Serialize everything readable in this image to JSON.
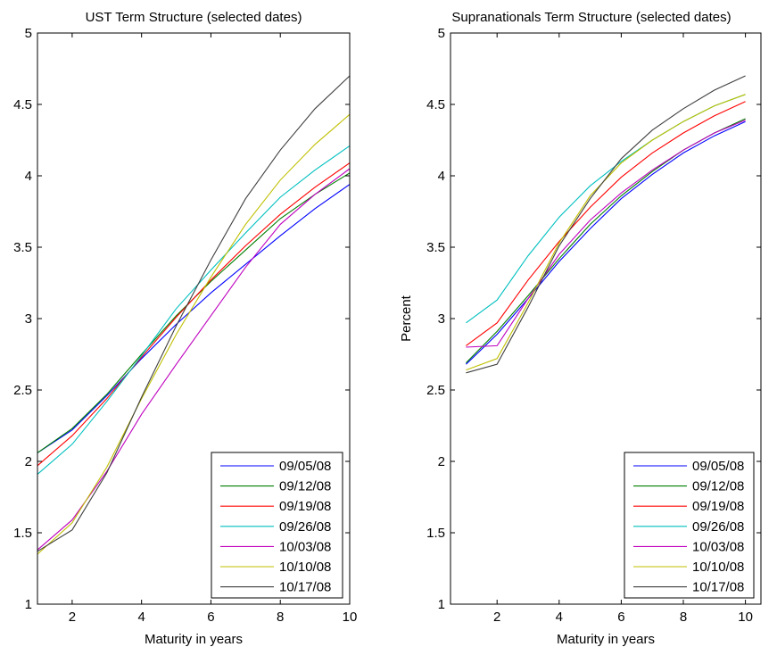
{
  "colors": {
    "09/05/08": "#0000ff",
    "09/12/08": "#007f00",
    "09/19/08": "#ff0000",
    "09/26/08": "#00bfbf",
    "10/03/08": "#bf00bf",
    "10/10/08": "#bfbf00",
    "10/17/08": "#3f3f3f"
  },
  "chart_data": [
    {
      "type": "line",
      "title": "UST Term Structure (selected dates)",
      "xlabel": "Maturity in years",
      "ylabel": "",
      "xlim": [
        1,
        10
      ],
      "ylim": [
        1,
        5
      ],
      "xticks": [
        2,
        4,
        6,
        8,
        10
      ],
      "yticks": [
        1,
        1.5,
        2,
        2.5,
        3,
        3.5,
        4,
        4.5,
        5
      ],
      "x": [
        1,
        2,
        3,
        4,
        5,
        6,
        7,
        8,
        9,
        10
      ],
      "legend": "bottom-right",
      "series": [
        {
          "name": "09/05/08",
          "values": [
            2.06,
            2.22,
            2.46,
            2.72,
            2.96,
            3.18,
            3.38,
            3.58,
            3.77,
            3.94
          ]
        },
        {
          "name": "09/12/08",
          "values": [
            2.06,
            2.23,
            2.47,
            2.75,
            3.02,
            3.26,
            3.48,
            3.7,
            3.87,
            4.02
          ]
        },
        {
          "name": "09/19/08",
          "values": [
            1.97,
            2.18,
            2.44,
            2.73,
            3.01,
            3.27,
            3.51,
            3.73,
            3.92,
            4.09
          ]
        },
        {
          "name": "09/26/08",
          "values": [
            1.91,
            2.12,
            2.42,
            2.74,
            3.07,
            3.34,
            3.6,
            3.85,
            4.04,
            4.21
          ]
        },
        {
          "name": "10/03/08",
          "values": [
            1.38,
            1.59,
            1.93,
            2.33,
            2.68,
            3.02,
            3.36,
            3.66,
            3.87,
            4.05
          ]
        },
        {
          "name": "10/10/08",
          "values": [
            1.35,
            1.57,
            1.96,
            2.44,
            2.89,
            3.29,
            3.66,
            3.97,
            4.22,
            4.43
          ]
        },
        {
          "name": "10/17/08",
          "values": [
            1.37,
            1.52,
            1.92,
            2.45,
            2.95,
            3.41,
            3.84,
            4.18,
            4.47,
            4.7
          ]
        }
      ]
    },
    {
      "type": "line",
      "title": "Supranationals Term Structure (selected dates)",
      "xlabel": "Maturity in years",
      "ylabel": "Percent",
      "xlim": [
        0.5,
        10.5
      ],
      "ylim": [
        1,
        5
      ],
      "xticks": [
        2,
        4,
        6,
        8,
        10
      ],
      "yticks": [
        1,
        1.5,
        2,
        2.5,
        3,
        3.5,
        4,
        4.5,
        5
      ],
      "x": [
        1,
        2,
        3,
        4,
        5,
        6,
        7,
        8,
        9,
        10
      ],
      "legend": "bottom-right",
      "series": [
        {
          "name": "09/05/08",
          "values": [
            2.68,
            2.89,
            3.14,
            3.4,
            3.63,
            3.84,
            4.01,
            4.16,
            4.28,
            4.38
          ]
        },
        {
          "name": "09/12/08",
          "values": [
            2.69,
            2.91,
            3.16,
            3.42,
            3.66,
            3.86,
            4.03,
            4.18,
            4.3,
            4.4
          ]
        },
        {
          "name": "09/19/08",
          "values": [
            2.81,
            2.97,
            3.27,
            3.54,
            3.78,
            3.99,
            4.16,
            4.3,
            4.42,
            4.52
          ]
        },
        {
          "name": "09/26/08",
          "values": [
            2.97,
            3.13,
            3.44,
            3.71,
            3.93,
            4.1,
            4.25,
            4.38,
            4.49,
            4.57
          ]
        },
        {
          "name": "10/03/08",
          "values": [
            2.8,
            2.81,
            3.14,
            3.45,
            3.69,
            3.88,
            4.04,
            4.18,
            4.3,
            4.39
          ]
        },
        {
          "name": "10/10/08",
          "values": [
            2.64,
            2.72,
            3.11,
            3.53,
            3.86,
            4.09,
            4.25,
            4.38,
            4.49,
            4.57
          ]
        },
        {
          "name": "10/17/08",
          "values": [
            2.62,
            2.68,
            3.08,
            3.51,
            3.84,
            4.12,
            4.32,
            4.47,
            4.6,
            4.7
          ]
        }
      ]
    }
  ]
}
